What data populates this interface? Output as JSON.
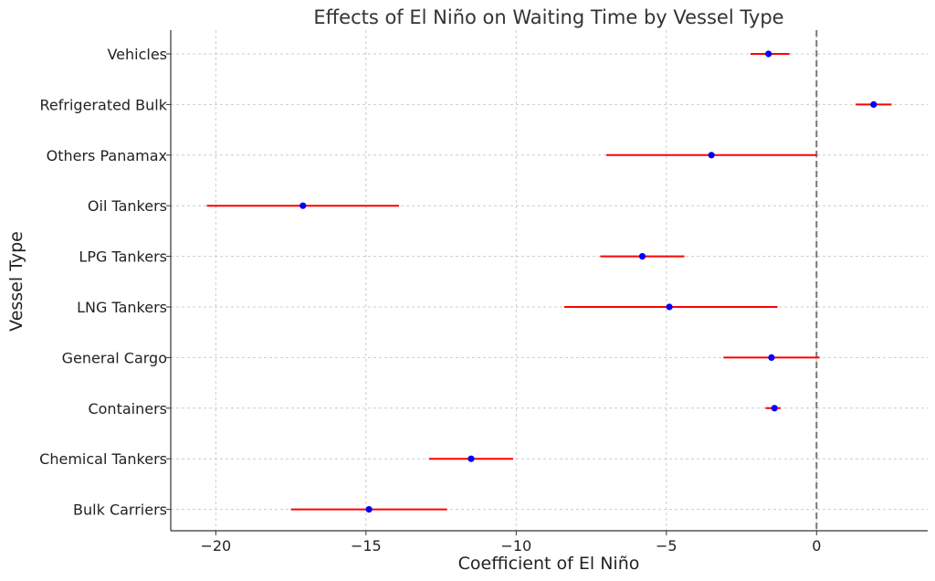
{
  "chart_data": {
    "type": "errorbar",
    "title": "Effects of El Niño on Waiting Time by Vessel Type",
    "xlabel": "Coefficient of El Niño",
    "ylabel": "Vessel Type",
    "xlim": [
      -21.5,
      3.7
    ],
    "xticks": [
      -20,
      -15,
      -10,
      -5,
      0
    ],
    "xtick_labels": [
      "−20",
      "−15",
      "−10",
      "−5",
      "0"
    ],
    "reference_line": {
      "x": 0,
      "style": "dashed",
      "color": "#777777"
    },
    "grid": true,
    "point_color": "#0000ff",
    "error_color": "#ff0000",
    "categories": [
      "Vehicles",
      "Refrigerated Bulk",
      "Others Panamax",
      "Oil Tankers",
      "LPG Tankers",
      "LNG Tankers",
      "General Cargo",
      "Containers",
      "Chemical Tankers",
      "Bulk Carriers"
    ],
    "points": [
      {
        "category": "Vehicles",
        "coef": -1.6,
        "ci_low": -2.2,
        "ci_high": -0.9
      },
      {
        "category": "Refrigerated Bulk",
        "coef": 1.9,
        "ci_low": 1.3,
        "ci_high": 2.5
      },
      {
        "category": "Others Panamax",
        "coef": -3.5,
        "ci_low": -7.0,
        "ci_high": 0.0
      },
      {
        "category": "Oil Tankers",
        "coef": -17.1,
        "ci_low": -20.3,
        "ci_high": -13.9
      },
      {
        "category": "LPG Tankers",
        "coef": -5.8,
        "ci_low": -7.2,
        "ci_high": -4.4
      },
      {
        "category": "LNG Tankers",
        "coef": -4.9,
        "ci_low": -8.4,
        "ci_high": -1.3
      },
      {
        "category": "General Cargo",
        "coef": -1.5,
        "ci_low": -3.1,
        "ci_high": 0.1
      },
      {
        "category": "Containers",
        "coef": -1.4,
        "ci_low": -1.7,
        "ci_high": -1.2
      },
      {
        "category": "Chemical Tankers",
        "coef": -11.5,
        "ci_low": -12.9,
        "ci_high": -10.1
      },
      {
        "category": "Bulk Carriers",
        "coef": -14.9,
        "ci_low": -17.5,
        "ci_high": -12.3
      }
    ]
  }
}
